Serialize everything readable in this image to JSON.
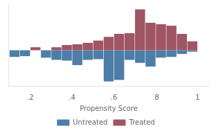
{
  "chart_data": {
    "type": "bar",
    "xlabel": "Propensity Score",
    "x": [
      0.125,
      0.175,
      0.225,
      0.275,
      0.325,
      0.375,
      0.425,
      0.475,
      0.525,
      0.575,
      0.625,
      0.675,
      0.725,
      0.775,
      0.825,
      0.875,
      0.925,
      0.975
    ],
    "series": [
      {
        "name": "Treated",
        "color": "#a05565",
        "values": [
          0,
          0,
          0.04,
          0,
          0.04,
          0.07,
          0.08,
          0.1,
          0.13,
          0.18,
          0.22,
          0.23,
          0.55,
          0.37,
          0.35,
          0.33,
          0.22,
          0.12
        ]
      },
      {
        "name": "Untreated",
        "color": "#4d7ea8",
        "values": [
          -0.09,
          -0.08,
          0,
          -0.1,
          -0.13,
          -0.14,
          -0.2,
          -0.13,
          -0.12,
          -0.42,
          -0.4,
          -0.13,
          -0.17,
          -0.22,
          -0.1,
          -0.09,
          -0.05,
          -0.02
        ]
      }
    ],
    "xlim": [
      0.095,
      1.055
    ],
    "ylim": [
      -0.48,
      0.62
    ],
    "xticks": [
      {
        "value": 0.2,
        "label": ".2"
      },
      {
        "value": 0.4,
        "label": ".4"
      },
      {
        "value": 0.6,
        "label": ".6"
      },
      {
        "value": 0.8,
        "label": ".8"
      },
      1
    ],
    "yticks": [],
    "grid": false,
    "legend": "bottom",
    "tick_labels": "x"
  }
}
